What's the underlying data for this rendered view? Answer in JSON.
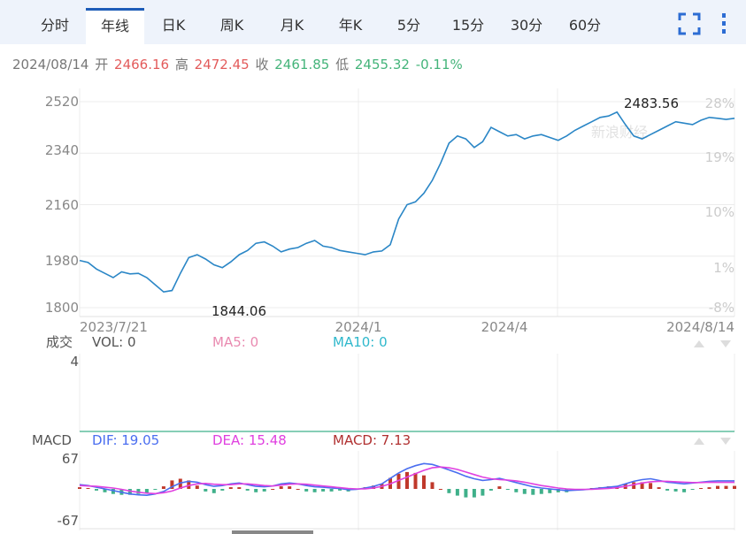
{
  "tabs": [
    {
      "label": "分时",
      "active": false
    },
    {
      "label": "年线",
      "active": true
    },
    {
      "label": "日K",
      "active": false
    },
    {
      "label": "周K",
      "active": false
    },
    {
      "label": "月K",
      "active": false
    },
    {
      "label": "年K",
      "active": false
    },
    {
      "label": "5分",
      "active": false
    },
    {
      "label": "15分",
      "active": false
    },
    {
      "label": "30分",
      "active": false
    },
    {
      "label": "60分",
      "active": false
    }
  ],
  "icons": {
    "fullscreen": "fullscreen-icon",
    "more": "more-vertical-icon"
  },
  "quote": {
    "date": "2024/08/14",
    "open_label": "开",
    "open": "2466.16",
    "high_label": "高",
    "high": "2472.45",
    "close_label": "收",
    "close": "2461.85",
    "low_label": "低",
    "low": "2455.32",
    "change": "-0.11%"
  },
  "colors": {
    "line": "#2a86c6",
    "up": "#c0392b",
    "down": "#3fb08a",
    "dif": "#4a6ef0",
    "dea": "#e040e0",
    "macd": "#b03030",
    "tab_accent": "#1d5cb8"
  },
  "chart_data": [
    {
      "type": "line",
      "title": "",
      "y_ticks": [
        "2520",
        "2340",
        "2160",
        "1980",
        "1800"
      ],
      "y_tick_values": [
        2520,
        2340,
        2160,
        1980,
        1800
      ],
      "ylim": [
        1788,
        2540
      ],
      "pct_ticks": [
        "28%",
        "19%",
        "10%",
        "1%",
        "-8%"
      ],
      "x_ticks": [
        "2023/7/21",
        "2024/1",
        "2024/4",
        "2024/8/14"
      ],
      "annotations": {
        "max": "2483.56",
        "min": "1844.06"
      },
      "watermark": "新浪财经",
      "series": [
        {
          "x": [
            "2023/07/21",
            "2023/07/26",
            "2023/07/31",
            "2023/08/05",
            "2023/08/10",
            "2023/08/15",
            "2023/08/20",
            "2023/08/25",
            "2023/08/30",
            "2023/09/04",
            "2023/09/09",
            "2023/09/14",
            "2023/09/19",
            "2023/09/24",
            "2023/09/29",
            "2023/10/04",
            "2023/10/09",
            "2023/10/14",
            "2023/10/19",
            "2023/10/24",
            "2023/10/29",
            "2023/11/03",
            "2023/11/08",
            "2023/11/13",
            "2023/11/18",
            "2023/11/23",
            "2023/11/28",
            "2023/12/03",
            "2023/12/08",
            "2023/12/13",
            "2023/12/18",
            "2023/12/23",
            "2023/12/28",
            "2024/01/02",
            "2024/01/07",
            "2024/01/12",
            "2024/01/17",
            "2024/01/22",
            "2024/01/27",
            "2024/02/01",
            "2024/02/06",
            "2024/02/11",
            "2024/02/16",
            "2024/02/21",
            "2024/02/26",
            "2024/03/02",
            "2024/03/07",
            "2024/03/12",
            "2024/03/17",
            "2024/03/22",
            "2024/03/27",
            "2024/04/01",
            "2024/04/06",
            "2024/04/11",
            "2024/04/16",
            "2024/04/21",
            "2024/04/26",
            "2024/05/01",
            "2024/05/06",
            "2024/05/11",
            "2024/05/16",
            "2024/05/21",
            "2024/05/26",
            "2024/05/31",
            "2024/06/05",
            "2024/06/10",
            "2024/06/15",
            "2024/06/20",
            "2024/06/25",
            "2024/06/30",
            "2024/07/05",
            "2024/07/10",
            "2024/07/15",
            "2024/07/20",
            "2024/07/25",
            "2024/07/30",
            "2024/08/04",
            "2024/08/09",
            "2024/08/14"
          ],
          "values": [
            1965,
            1958,
            1935,
            1920,
            1905,
            1925,
            1918,
            1920,
            1905,
            1880,
            1855,
            1860,
            1920,
            1975,
            1985,
            1970,
            1950,
            1940,
            1960,
            1985,
            2000,
            2025,
            2030,
            2015,
            1995,
            2005,
            2010,
            2025,
            2035,
            2015,
            2010,
            2000,
            1995,
            1990,
            1985,
            1995,
            1998,
            2020,
            2110,
            2160,
            2170,
            2200,
            2245,
            2305,
            2375,
            2400,
            2390,
            2360,
            2380,
            2430,
            2415,
            2400,
            2405,
            2390,
            2400,
            2405,
            2395,
            2385,
            2400,
            2420,
            2435,
            2450,
            2465,
            2470,
            2483.56,
            2440,
            2400,
            2390,
            2405,
            2420,
            2435,
            2450,
            2445,
            2440,
            2455,
            2465,
            2462,
            2458,
            2461.85
          ]
        }
      ]
    },
    {
      "type": "bar",
      "title": "成交",
      "legend": {
        "vol": "VOL: 0",
        "ma5": "MA5: 0",
        "ma10": "MA10: 0"
      },
      "y_ticks": [
        "4"
      ],
      "series": [
        {
          "name": "VOL",
          "values": [
            0
          ]
        }
      ]
    },
    {
      "type": "bar",
      "title": "MACD",
      "legend": {
        "dif": "DIF: 19.05",
        "dea": "DEA: 15.48",
        "macd": "MACD: 7.13"
      },
      "y_ticks": [
        "67",
        "-67"
      ],
      "ylim": [
        -67,
        67
      ],
      "series": [
        {
          "name": "DIF",
          "values": [
            10,
            8,
            4,
            0,
            -4,
            -8,
            -12,
            -14,
            -15,
            -12,
            -6,
            5,
            14,
            18,
            16,
            10,
            6,
            8,
            12,
            14,
            10,
            6,
            5,
            7,
            12,
            14,
            12,
            8,
            5,
            4,
            2,
            1,
            -2,
            -1,
            2,
            6,
            12,
            25,
            38,
            48,
            55,
            60,
            58,
            52,
            45,
            38,
            30,
            24,
            20,
            22,
            25,
            20,
            15,
            10,
            5,
            2,
            0,
            -2,
            -4,
            -3,
            -2,
            0,
            2,
            4,
            6,
            12,
            18,
            22,
            24,
            20,
            16,
            14,
            12,
            14,
            16,
            18,
            19.05,
            19.05,
            19.05
          ]
        },
        {
          "name": "DEA",
          "values": [
            8,
            7,
            6,
            4,
            2,
            -1,
            -5,
            -8,
            -10,
            -11,
            -9,
            -5,
            2,
            8,
            12,
            13,
            11,
            10,
            10,
            12,
            12,
            10,
            8,
            7,
            9,
            11,
            12,
            11,
            9,
            7,
            5,
            3,
            1,
            0,
            0,
            2,
            6,
            12,
            20,
            28,
            36,
            44,
            50,
            52,
            50,
            46,
            40,
            34,
            28,
            24,
            22,
            21,
            19,
            16,
            12,
            8,
            5,
            2,
            0,
            -1,
            -1,
            -1,
            0,
            1,
            3,
            6,
            10,
            14,
            17,
            18,
            18,
            17,
            16,
            15,
            15,
            16,
            15.48,
            15.48,
            15.48
          ]
        },
        {
          "name": "MACD",
          "values": [
            4,
            2,
            -4,
            -8,
            -12,
            -14,
            -14,
            -12,
            -10,
            -2,
            6,
            20,
            24,
            20,
            8,
            -6,
            -10,
            -4,
            4,
            4,
            -4,
            -8,
            -6,
            0,
            6,
            6,
            0,
            -6,
            -8,
            -6,
            -6,
            -4,
            -6,
            -2,
            4,
            8,
            12,
            26,
            36,
            40,
            38,
            32,
            16,
            0,
            -10,
            -16,
            -20,
            -20,
            -16,
            -4,
            6,
            -2,
            -8,
            -12,
            -14,
            -12,
            -10,
            -8,
            -8,
            -4,
            -2,
            2,
            4,
            6,
            6,
            12,
            16,
            16,
            14,
            4,
            -4,
            -6,
            -8,
            -2,
            2,
            4,
            7.13,
            7.13,
            7.13
          ]
        }
      ]
    }
  ]
}
